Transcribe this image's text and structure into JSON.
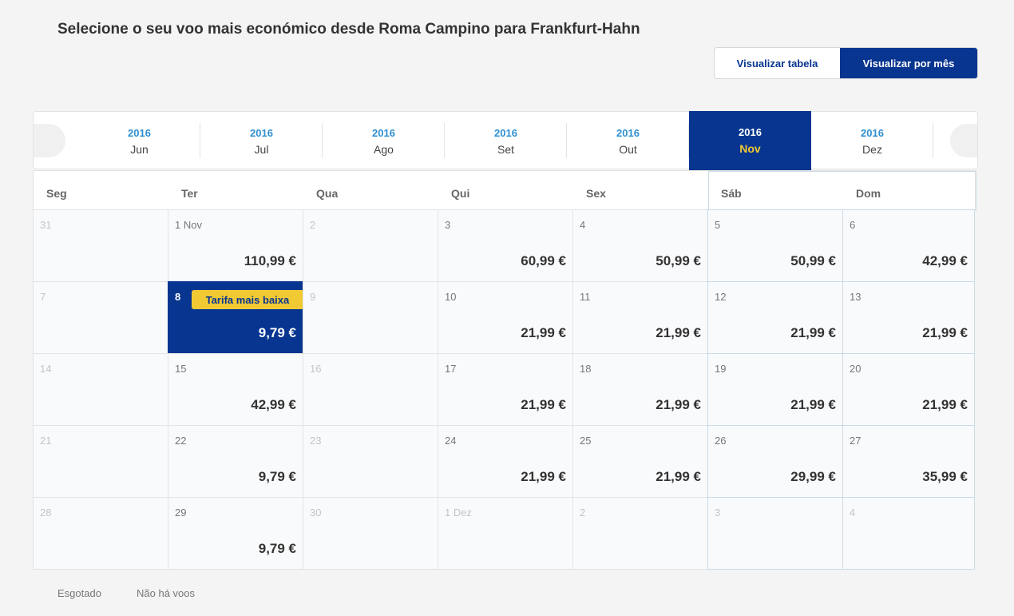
{
  "title": "Selecione o seu voo mais económico desde Roma Campino para Frankfurt-Hahn",
  "view_toggle": {
    "table_label": "Visualizar tabela",
    "month_label": "Visualizar por mês"
  },
  "months": [
    {
      "year": "2016",
      "month": "Jun"
    },
    {
      "year": "2016",
      "month": "Jul"
    },
    {
      "year": "2016",
      "month": "Ago"
    },
    {
      "year": "2016",
      "month": "Set"
    },
    {
      "year": "2016",
      "month": "Out"
    },
    {
      "year": "2016",
      "month": "Nov",
      "active": true
    },
    {
      "year": "2016",
      "month": "Dez"
    }
  ],
  "weekdays": [
    "Seg",
    "Ter",
    "Qua",
    "Qui",
    "Sex",
    "Sáb",
    "Dom"
  ],
  "lowest_fare_label": "Tarifa mais baixa",
  "weeks": [
    [
      {
        "day": "31",
        "dim": true
      },
      {
        "day": "1 Nov",
        "price": "110,99 €"
      },
      {
        "day": "2",
        "dim": true
      },
      {
        "day": "3",
        "price": "60,99 €"
      },
      {
        "day": "4",
        "price": "50,99 €"
      },
      {
        "day": "5",
        "price": "50,99 €"
      },
      {
        "day": "6",
        "price": "42,99 €"
      }
    ],
    [
      {
        "day": "7",
        "dim": true
      },
      {
        "day": "8",
        "price": "9,79 €",
        "selected": true,
        "lowest": true
      },
      {
        "day": "9",
        "dim": true
      },
      {
        "day": "10",
        "price": "21,99 €"
      },
      {
        "day": "11",
        "price": "21,99 €"
      },
      {
        "day": "12",
        "price": "21,99 €"
      },
      {
        "day": "13",
        "price": "21,99 €"
      }
    ],
    [
      {
        "day": "14",
        "dim": true
      },
      {
        "day": "15",
        "price": "42,99 €"
      },
      {
        "day": "16",
        "dim": true
      },
      {
        "day": "17",
        "price": "21,99 €"
      },
      {
        "day": "18",
        "price": "21,99 €"
      },
      {
        "day": "19",
        "price": "21,99 €"
      },
      {
        "day": "20",
        "price": "21,99 €"
      }
    ],
    [
      {
        "day": "21",
        "dim": true
      },
      {
        "day": "22",
        "price": "9,79 €"
      },
      {
        "day": "23",
        "dim": true
      },
      {
        "day": "24",
        "price": "21,99 €"
      },
      {
        "day": "25",
        "price": "21,99 €"
      },
      {
        "day": "26",
        "price": "29,99 €"
      },
      {
        "day": "27",
        "price": "35,99 €"
      }
    ],
    [
      {
        "day": "28",
        "dim": true
      },
      {
        "day": "29",
        "price": "9,79 €"
      },
      {
        "day": "30",
        "dim": true
      },
      {
        "day": "1 Dez",
        "dim": true
      },
      {
        "day": "2",
        "dim": true
      },
      {
        "day": "3",
        "dim": true
      },
      {
        "day": "4",
        "dim": true
      }
    ]
  ],
  "legend": {
    "sold_out": "Esgotado",
    "no_flights": "Não há voos"
  }
}
